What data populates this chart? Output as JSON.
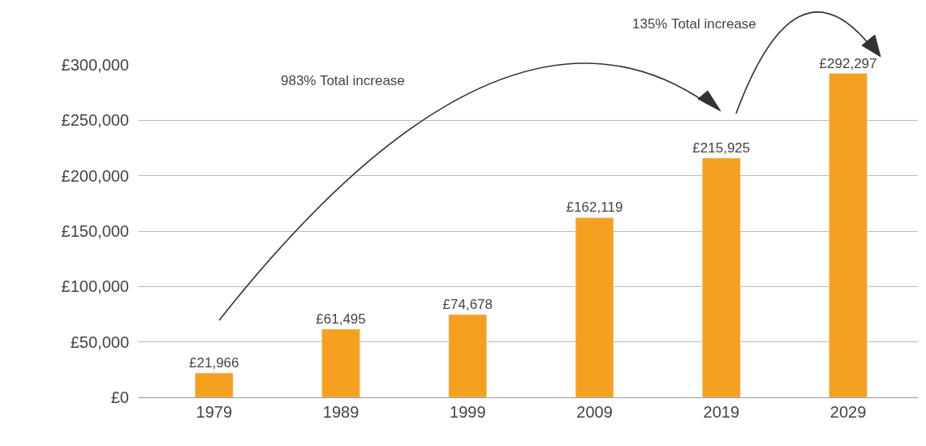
{
  "chart_data": {
    "type": "bar",
    "categories": [
      "1979",
      "1989",
      "1999",
      "2009",
      "2019",
      "2029"
    ],
    "values": [
      21966,
      61495,
      74678,
      162119,
      215925,
      292297
    ],
    "value_labels": [
      "£21,966",
      "£61,495",
      "£74,678",
      "£162,119",
      "£215,925",
      "£292,297"
    ],
    "color": "#f5a11f",
    "ylim": [
      0,
      300000
    ],
    "yticks": [
      {
        "value": 0,
        "label": "£0"
      },
      {
        "value": 50000,
        "label": "£50,000"
      },
      {
        "value": 100000,
        "label": "£100,000"
      },
      {
        "value": 150000,
        "label": "£150,000"
      },
      {
        "value": 200000,
        "label": "£200,000"
      },
      {
        "value": 250000,
        "label": "£250,000"
      },
      {
        "value": 300000,
        "label": "£300,000"
      }
    ],
    "grid": "y",
    "annotations": [
      "983% Total increase",
      "135% Total increase"
    ]
  }
}
